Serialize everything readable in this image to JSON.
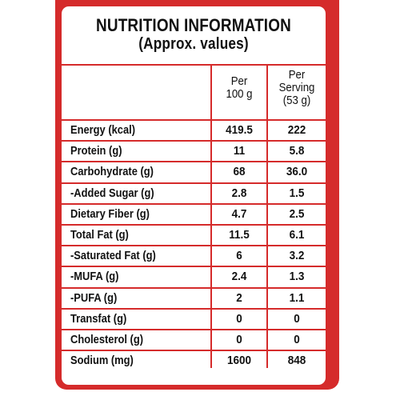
{
  "title": {
    "line1": "NUTRITION INFORMATION",
    "line2": "(Approx. values)"
  },
  "columns": {
    "per100": [
      "Per",
      "100 g"
    ],
    "perServing": [
      "Per",
      "Serving",
      "(53 g)"
    ]
  },
  "rows": [
    {
      "nutrient": "Energy (kcal)",
      "per100": "419.5",
      "perServing": "222"
    },
    {
      "nutrient": "Protein (g)",
      "per100": "11",
      "perServing": "5.8"
    },
    {
      "nutrient": "Carbohydrate (g)",
      "per100": "68",
      "perServing": "36.0"
    },
    {
      "nutrient": "-Added Sugar (g)",
      "per100": "2.8",
      "perServing": "1.5"
    },
    {
      "nutrient": "Dietary Fiber (g)",
      "per100": "4.7",
      "perServing": "2.5"
    },
    {
      "nutrient": "Total Fat (g)",
      "per100": "11.5",
      "perServing": "6.1"
    },
    {
      "nutrient": "-Saturated Fat (g)",
      "per100": "6",
      "perServing": "3.2"
    },
    {
      "nutrient": "-MUFA (g)",
      "per100": "2.4",
      "perServing": "1.3"
    },
    {
      "nutrient": "-PUFA (g)",
      "per100": "2",
      "perServing": "1.1"
    },
    {
      "nutrient": "Transfat (g)",
      "per100": "0",
      "perServing": "0"
    },
    {
      "nutrient": "Cholesterol (g)",
      "per100": "0",
      "perServing": "0"
    },
    {
      "nutrient": "Sodium (mg)",
      "per100": "1600",
      "perServing": "848"
    }
  ],
  "colors": {
    "accent": "#d52b2b",
    "text": "#111111",
    "background": "#ffffff"
  }
}
